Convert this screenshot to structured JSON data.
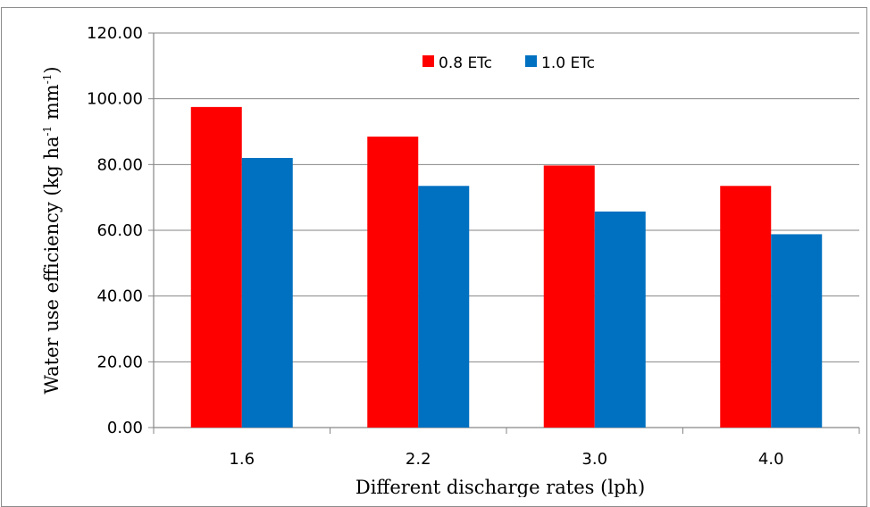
{
  "chart_data": {
    "type": "bar",
    "categories": [
      "1.6",
      "2.2",
      "3.0",
      "4.0"
    ],
    "series": [
      {
        "name": "0.8 ETc",
        "color": "#ff0000",
        "values": [
          97.5,
          88.5,
          79.7,
          73.5
        ]
      },
      {
        "name": "1.0 ETc",
        "color": "#0070c0",
        "values": [
          82.0,
          73.5,
          65.7,
          58.8
        ]
      }
    ],
    "yticks": [
      "0.00",
      "20.00",
      "40.00",
      "60.00",
      "80.00",
      "100.00",
      "120.00"
    ],
    "ylim": [
      0,
      120
    ],
    "xlabel": "Different discharge rates (lph)",
    "ylabel": {
      "main": "Water use efficiency (kg ha",
      "sup1": "-1",
      "mid": " mm",
      "sup2": "-1",
      "end": ")"
    },
    "legend_position": "top-center",
    "grid": "horizontal"
  }
}
